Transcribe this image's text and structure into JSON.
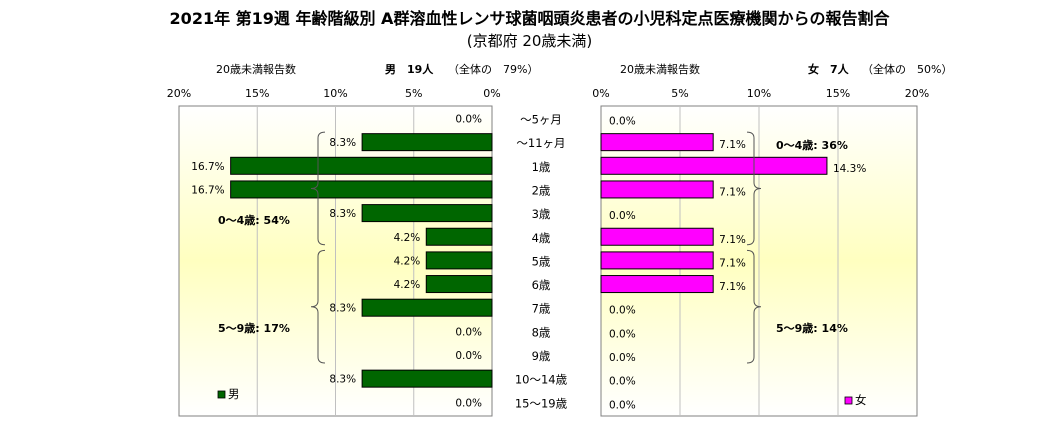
{
  "title": "2021年 第19週 年齢階級別 A群溶血性レンサ球菌咽頭炎患者の小児科定点医療機関からの報告割合",
  "subtitle": "(京都府 20歳未満)",
  "headers": {
    "male_label": "20歳未満報告数",
    "male_count": "男　19人",
    "male_share": "（全体の　79%）",
    "female_label": "20歳未満報告数",
    "female_count": "女　7人",
    "female_share": "（全体の　50%）"
  },
  "colors": {
    "male": "#006600",
    "female": "#ff00ff",
    "bg_top": "#ffffff",
    "bg_mid": "#ffffc0"
  },
  "chart_data": [
    {
      "type": "bar",
      "orientation": "horizontal",
      "direction": "right-to-left",
      "legend": "男",
      "legend_position": "bottom-left",
      "xlim": [
        0,
        20
      ],
      "ticks": [
        "20%",
        "15%",
        "10%",
        "5%",
        "0%"
      ],
      "tick_values": [
        20,
        15,
        10,
        5,
        0
      ],
      "categories": [
        "～5ヶ月",
        "～11ヶ月",
        "1歳",
        "2歳",
        "3歳",
        "4歳",
        "5歳",
        "6歳",
        "7歳",
        "8歳",
        "9歳",
        "10～14歳",
        "15～19歳"
      ],
      "values": [
        0.0,
        8.3,
        16.7,
        16.7,
        8.3,
        4.2,
        4.2,
        4.2,
        8.3,
        0.0,
        0.0,
        8.3,
        0.0
      ],
      "labels": [
        "0.0%",
        "8.3%",
        "16.7%",
        "16.7%",
        "8.3%",
        "4.2%",
        "4.2%",
        "4.2%",
        "8.3%",
        "0.0%",
        "0.0%",
        "8.3%",
        "0.0%"
      ],
      "annotations": [
        {
          "text": "0～4歳: 54%",
          "from_index": 1,
          "to_index": 5
        },
        {
          "text": "5～9歳: 17%",
          "from_index": 6,
          "to_index": 10
        }
      ]
    },
    {
      "type": "bar",
      "orientation": "horizontal",
      "direction": "left-to-right",
      "legend": "女",
      "legend_position": "bottom-right",
      "xlim": [
        0,
        20
      ],
      "ticks": [
        "0%",
        "5%",
        "10%",
        "15%",
        "20%"
      ],
      "tick_values": [
        0,
        5,
        10,
        15,
        20
      ],
      "categories": [
        "～5ヶ月",
        "～11ヶ月",
        "1歳",
        "2歳",
        "3歳",
        "4歳",
        "5歳",
        "6歳",
        "7歳",
        "8歳",
        "9歳",
        "10～14歳",
        "15～19歳"
      ],
      "values": [
        0.0,
        7.1,
        14.3,
        7.1,
        0.0,
        7.1,
        7.1,
        7.1,
        0.0,
        0.0,
        0.0,
        0.0,
        0.0
      ],
      "labels": [
        "0.0%",
        "7.1%",
        "14.3%",
        "7.1%",
        "0.0%",
        "7.1%",
        "7.1%",
        "7.1%",
        "0.0%",
        "0.0%",
        "0.0%",
        "0.0%",
        "0.0%"
      ],
      "annotations": [
        {
          "text": "0～4歳: 36%",
          "from_index": 1,
          "to_index": 5
        },
        {
          "text": "5～9歳: 14%",
          "from_index": 6,
          "to_index": 10
        }
      ]
    }
  ]
}
